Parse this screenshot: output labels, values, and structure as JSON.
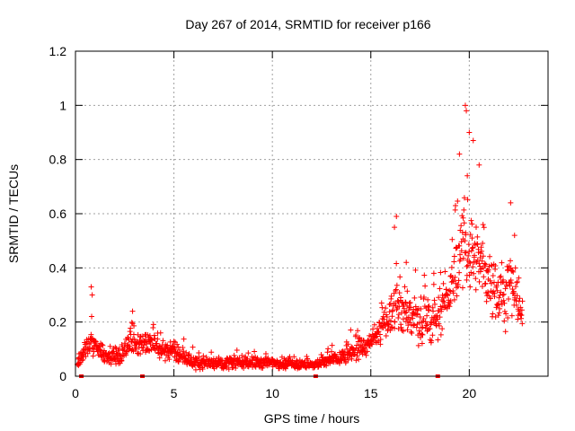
{
  "chart_data": {
    "type": "scatter",
    "title": "Day 267 of 2014, SRMTID for receiver p166",
    "xlabel": "GPS time / hours",
    "ylabel": "SRMTID / TECUs",
    "xlim": [
      0,
      24
    ],
    "ylim": [
      0,
      1.2
    ],
    "xticks": [
      0,
      5,
      10,
      15,
      20
    ],
    "xtick_labels": [
      "0",
      "5",
      "10",
      "15",
      "20"
    ],
    "yticks": [
      0,
      0.2,
      0.4,
      0.6,
      0.8,
      1,
      1.2
    ],
    "ytick_labels": [
      "0",
      "0.2",
      "0.4",
      "0.6",
      "0.8",
      "1",
      "1.2"
    ],
    "grid": true,
    "marker": "+",
    "color": "#ff0000",
    "series": [
      {
        "name": "SRMTID",
        "profile": [
          {
            "x": 0.0,
            "base": 0.02,
            "spread": 0.01
          },
          {
            "x": 0.2,
            "base": 0.06,
            "spread": 0.03
          },
          {
            "x": 0.4,
            "base": 0.09,
            "spread": 0.04
          },
          {
            "x": 0.8,
            "base": 0.12,
            "spread": 0.06
          },
          {
            "x": 1.5,
            "base": 0.08,
            "spread": 0.05
          },
          {
            "x": 2.2,
            "base": 0.07,
            "spread": 0.04
          },
          {
            "x": 3.0,
            "base": 0.13,
            "spread": 0.06
          },
          {
            "x": 4.0,
            "base": 0.11,
            "spread": 0.05
          },
          {
            "x": 5.0,
            "base": 0.09,
            "spread": 0.05
          },
          {
            "x": 6.0,
            "base": 0.05,
            "spread": 0.03
          },
          {
            "x": 8.0,
            "base": 0.05,
            "spread": 0.03
          },
          {
            "x": 10.0,
            "base": 0.05,
            "spread": 0.03
          },
          {
            "x": 12.0,
            "base": 0.04,
            "spread": 0.02
          },
          {
            "x": 13.5,
            "base": 0.07,
            "spread": 0.04
          },
          {
            "x": 15.0,
            "base": 0.12,
            "spread": 0.05
          },
          {
            "x": 15.6,
            "base": 0.18,
            "spread": 0.06
          },
          {
            "x": 16.3,
            "base": 0.26,
            "spread": 0.12
          },
          {
            "x": 17.0,
            "base": 0.22,
            "spread": 0.12
          },
          {
            "x": 18.0,
            "base": 0.18,
            "spread": 0.1
          },
          {
            "x": 19.0,
            "base": 0.3,
            "spread": 0.1
          },
          {
            "x": 19.7,
            "base": 0.48,
            "spread": 0.2
          },
          {
            "x": 20.5,
            "base": 0.42,
            "spread": 0.16
          },
          {
            "x": 21.5,
            "base": 0.3,
            "spread": 0.14
          },
          {
            "x": 22.3,
            "base": 0.32,
            "spread": 0.14
          },
          {
            "x": 22.7,
            "base": 0.22,
            "spread": 0.08
          }
        ],
        "x_range": [
          0.1,
          22.7
        ],
        "n_points": 1400,
        "peaks": [
          {
            "x": 0.8,
            "y": 0.33
          },
          {
            "x": 0.85,
            "y": 0.3
          },
          {
            "x": 2.9,
            "y": 0.24
          },
          {
            "x": 16.2,
            "y": 0.55
          },
          {
            "x": 16.3,
            "y": 0.59
          },
          {
            "x": 16.8,
            "y": 0.42
          },
          {
            "x": 18.2,
            "y": 0.38
          },
          {
            "x": 19.3,
            "y": 0.63
          },
          {
            "x": 19.5,
            "y": 0.82
          },
          {
            "x": 19.8,
            "y": 1.0
          },
          {
            "x": 19.85,
            "y": 0.98
          },
          {
            "x": 20.0,
            "y": 0.9
          },
          {
            "x": 19.9,
            "y": 0.74
          },
          {
            "x": 20.2,
            "y": 0.87
          },
          {
            "x": 20.5,
            "y": 0.78
          },
          {
            "x": 20.7,
            "y": 0.56
          },
          {
            "x": 22.1,
            "y": 0.64
          },
          {
            "x": 22.3,
            "y": 0.52
          }
        ],
        "dropouts": [
          {
            "x": 0.3,
            "y": 0.0
          },
          {
            "x": 3.4,
            "y": 0.0
          },
          {
            "x": 12.2,
            "y": 0.0
          },
          {
            "x": 18.4,
            "y": 0.0
          }
        ]
      }
    ]
  }
}
